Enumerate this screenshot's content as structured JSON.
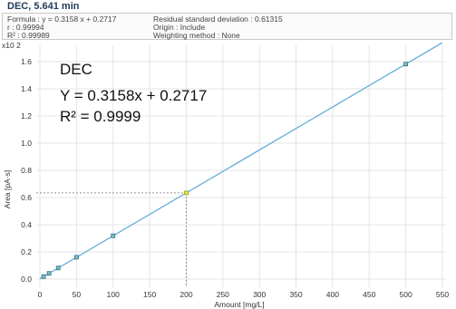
{
  "header": {
    "title": "DEC, 5.641 min",
    "formula": "Formula : y = 0.3158 x + 0.2717",
    "r": "r : 0.99994",
    "r2": "R² : 0.99989",
    "residual_sd": "Residual standard deviation : 0.61315",
    "origin": "Origin : Include",
    "weighting": "Weighting method : None"
  },
  "colors": {
    "fit_line": "#5ba9d6",
    "point_fill": "#7bc2b8",
    "point_stroke": "#2f6e8c",
    "highlight_point": "#e8e84a",
    "grid": "#e6e6e6"
  },
  "chart_data": {
    "type": "scatter",
    "title": "DEC",
    "annotation_equation": "Y = 0.3158x + 0.2717",
    "annotation_r2": "R² = 0.9999",
    "xlabel": "Amount [mg/L]",
    "ylabel": "Area [pA·s]",
    "y_multiplier": "x10 2",
    "xlim": [
      -5,
      555
    ],
    "ylim": [
      -0.06,
      1.72
    ],
    "x_ticks": [
      0,
      50,
      100,
      150,
      200,
      250,
      300,
      350,
      400,
      450,
      500,
      550
    ],
    "y_ticks": [
      0.0,
      0.2,
      0.4,
      0.6,
      0.8,
      1.0,
      1.2,
      1.4,
      1.6
    ],
    "fit": {
      "slope": 0.003158,
      "intercept": 0.002717
    },
    "points": [
      {
        "x": 5,
        "y": 0.0185
      },
      {
        "x": 12.5,
        "y": 0.0422
      },
      {
        "x": 25,
        "y": 0.0817
      },
      {
        "x": 50,
        "y": 0.1606
      },
      {
        "x": 100,
        "y": 0.3185
      },
      {
        "x": 500,
        "y": 1.5817
      }
    ],
    "highlight_point": {
      "x": 200,
      "y": 0.6343
    },
    "grid": true
  }
}
